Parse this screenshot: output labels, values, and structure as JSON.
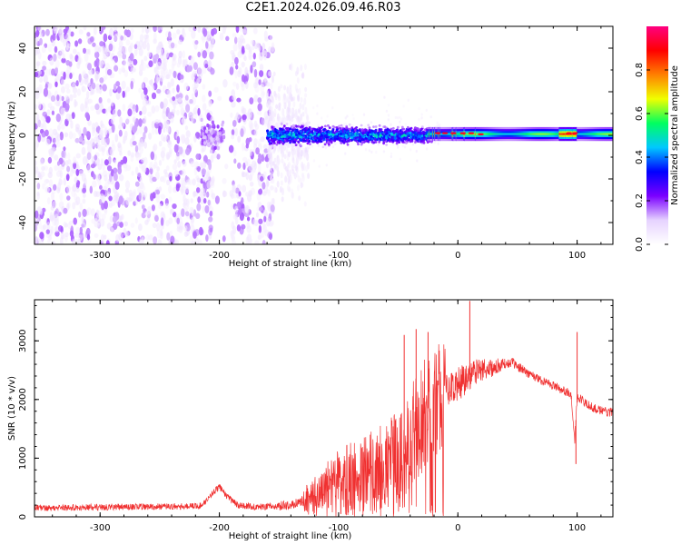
{
  "figure": {
    "title": "C2E1.2024.026.09.46.R03"
  },
  "chart_data": [
    {
      "type": "heatmap",
      "title": "C2E1.2024.026.09.46.R03",
      "xlabel": "Height of straight line (km)",
      "ylabel": "Frequency (Hz)",
      "xlim": [
        -355,
        130
      ],
      "ylim": [
        -50,
        50
      ],
      "x_ticks": [
        -300,
        -200,
        -100,
        0,
        100
      ],
      "y_ticks": [
        -40,
        -20,
        0,
        20,
        40
      ],
      "colorbar": {
        "label": "Normalized spectral amplitude",
        "range": [
          0,
          1
        ],
        "ticks": [
          0.0,
          0.2,
          0.4,
          0.6,
          0.8
        ],
        "colormap": [
          "#ffffff",
          "#e6d2ff",
          "#7a00ff",
          "#0000ff",
          "#00c8ff",
          "#00ff60",
          "#f0ff00",
          "#ff8000",
          "#ff0000",
          "#ff0080"
        ]
      },
      "features": [
        {
          "region_x": [
            -355,
            -155
          ],
          "freq_spread_hz": 50,
          "amplitude": 0.05,
          "description_type": "noise"
        },
        {
          "region_x": [
            -215,
            -195
          ],
          "freq_spread_hz": 12,
          "amplitude": 0.15,
          "description_type": "burst"
        },
        {
          "region_x": [
            -160,
            -20
          ],
          "freq_spread_hz": 6,
          "amplitude": 0.35
        },
        {
          "region_x": [
            -20,
            130
          ],
          "freq_spread_hz": 2,
          "amplitude": 0.6,
          "peak_frequency_hz": 0.5
        },
        {
          "region_x": [
            90,
            100
          ],
          "freq_spread_hz": 2,
          "amplitude": 0.9,
          "peak_frequency_hz": 1
        }
      ]
    },
    {
      "type": "line",
      "xlabel": "Height of straight line (km)",
      "ylabel": "SNR (10 * v/v)",
      "xlim": [
        -355,
        130
      ],
      "ylim": [
        0,
        3700
      ],
      "x_ticks": [
        -300,
        -200,
        -100,
        0,
        100
      ],
      "y_ticks": [
        0,
        1000,
        2000,
        3000
      ],
      "color": "#f03030",
      "series": [
        {
          "x": [
            -355,
            -320,
            -280,
            -240,
            -215,
            -205,
            -200,
            -195,
            -185,
            -170,
            -150,
            -135,
            -120,
            -110,
            -100,
            -90,
            -80,
            -70,
            -60,
            -50,
            -45,
            -40,
            -35,
            -30,
            -25,
            -20,
            -15,
            -10,
            -5,
            0,
            5,
            10,
            15,
            20,
            25,
            30,
            35,
            40,
            45,
            50,
            60,
            70,
            80,
            90,
            95,
            98,
            100,
            102,
            105,
            110,
            120,
            130
          ],
          "y": [
            150,
            160,
            170,
            175,
            190,
            420,
            520,
            380,
            200,
            170,
            180,
            230,
            380,
            560,
            700,
            760,
            780,
            840,
            900,
            980,
            1150,
            1350,
            1500,
            1680,
            1850,
            2000,
            2100,
            2150,
            2200,
            2250,
            2330,
            2420,
            2470,
            2500,
            2520,
            2540,
            2580,
            2600,
            2640,
            2560,
            2440,
            2330,
            2240,
            2150,
            2050,
            1300,
            2000,
            2030,
            1980,
            1900,
            1800,
            1780
          ]
        }
      ],
      "spikes": [
        {
          "x": 10,
          "y": 3680
        },
        {
          "x": -45,
          "y": 3100
        },
        {
          "x": -35,
          "y": 3200
        },
        {
          "x": -25,
          "y": 3150
        },
        {
          "x": 100,
          "y": 3150
        },
        {
          "x": 99,
          "y": 900
        }
      ]
    }
  ]
}
